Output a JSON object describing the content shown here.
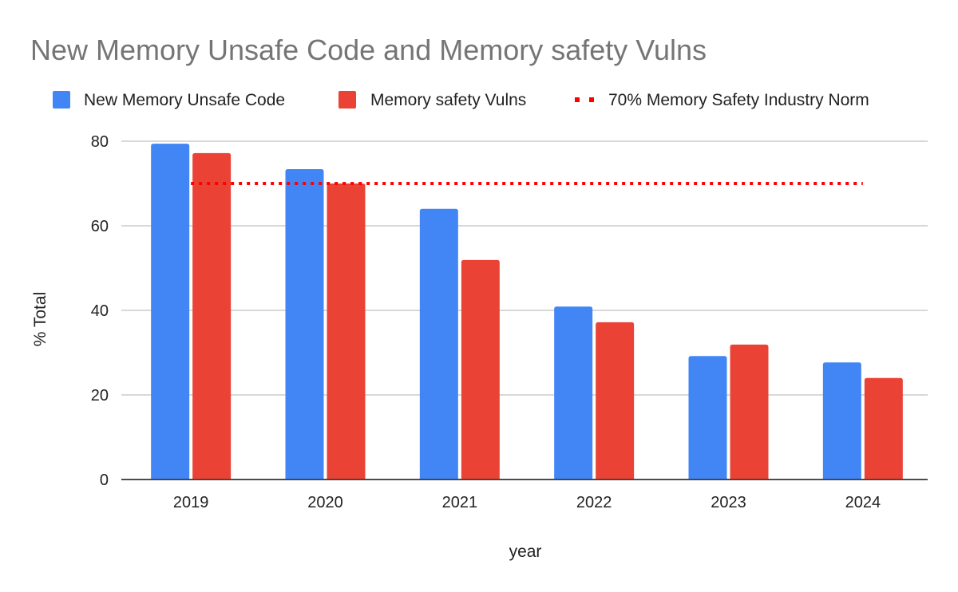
{
  "chart_data": {
    "type": "bar",
    "title": "New Memory Unsafe Code and Memory safety Vulns",
    "xlabel": "year",
    "ylabel": "% Total",
    "categories": [
      "2019",
      "2020",
      "2021",
      "2022",
      "2023",
      "2024"
    ],
    "series": [
      {
        "name": "New Memory Unsafe Code",
        "color": "#4285f4",
        "values": [
          79.4,
          73.4,
          64,
          40.9,
          29.2,
          27.7
        ]
      },
      {
        "name": "Memory safety Vulns",
        "color": "#ea4335",
        "values": [
          77.2,
          70,
          51.9,
          37.2,
          31.9,
          24
        ]
      }
    ],
    "reference_line": {
      "name": "70% Memory Safety Industry Norm",
      "value": 70,
      "color": "#ff0000",
      "style": "dotted"
    },
    "ylim": [
      0,
      80
    ],
    "yticks": [
      "0",
      "20",
      "40",
      "60",
      "80"
    ],
    "grid": true,
    "legend": "top"
  }
}
